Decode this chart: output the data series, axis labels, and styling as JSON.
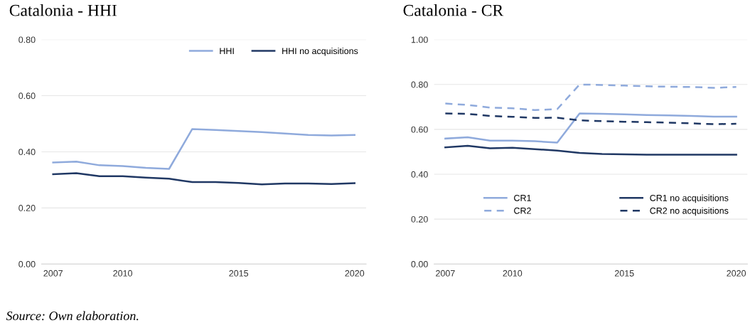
{
  "chart_data": [
    {
      "type": "line",
      "title": "Catalonia - HHI",
      "x": [
        2007,
        2008,
        2009,
        2010,
        2011,
        2012,
        2013,
        2014,
        2015,
        2016,
        2017,
        2018,
        2019,
        2020
      ],
      "xlim": [
        2006.5,
        2020.5
      ],
      "xticks": [
        2007,
        2010,
        2015,
        2020
      ],
      "ylim": [
        0,
        0.8
      ],
      "yticks": [
        {
          "value": 0,
          "label": "0.00"
        },
        {
          "value": 0.2,
          "label": "0.20"
        },
        {
          "value": 0.4,
          "label": "0.40"
        },
        {
          "value": 0.6,
          "label": "0.60"
        },
        {
          "value": 0.8,
          "label": "0.80"
        }
      ],
      "grid": "y",
      "legend": "top right",
      "marker": "none",
      "series": [
        {
          "name": "HHI",
          "color": "#8faadc",
          "line_style": "solid",
          "values": [
            0.362,
            0.365,
            0.352,
            0.349,
            0.343,
            0.339,
            0.481,
            0.478,
            0.474,
            0.47,
            0.465,
            0.46,
            0.458,
            0.46
          ]
        },
        {
          "name": "HHI no acquisitions",
          "color": "#203864",
          "line_style": "solid",
          "values": [
            0.32,
            0.324,
            0.313,
            0.313,
            0.308,
            0.304,
            0.292,
            0.292,
            0.289,
            0.284,
            0.287,
            0.287,
            0.285,
            0.288
          ]
        }
      ],
      "annotations": [
        "Source: Own elaboration."
      ]
    },
    {
      "type": "line",
      "title": "Catalonia - CR",
      "x": [
        2007,
        2008,
        2009,
        2010,
        2011,
        2012,
        2013,
        2014,
        2015,
        2016,
        2017,
        2018,
        2019,
        2020
      ],
      "xlim": [
        2006.5,
        2020.5
      ],
      "xticks": [
        2007,
        2010,
        2015,
        2020
      ],
      "ylim": [
        0,
        1.0
      ],
      "yticks": [
        {
          "value": 0,
          "label": "0.00"
        },
        {
          "value": 0.2,
          "label": "0.20"
        },
        {
          "value": 0.4,
          "label": "0.40"
        },
        {
          "value": 0.6,
          "label": "0.60"
        },
        {
          "value": 0.8,
          "label": "0.80"
        },
        {
          "value": 1.0,
          "label": "1.00"
        }
      ],
      "grid": "y",
      "legend": "bottom",
      "marker": "none",
      "series": [
        {
          "name": "CR1",
          "color": "#8faadc",
          "line_style": "solid",
          "values": [
            0.559,
            0.565,
            0.55,
            0.55,
            0.547,
            0.541,
            0.671,
            0.669,
            0.667,
            0.664,
            0.662,
            0.66,
            0.657,
            0.657
          ]
        },
        {
          "name": "CR2",
          "color": "#8faadc",
          "line_style": "dashed",
          "values": [
            0.715,
            0.709,
            0.697,
            0.694,
            0.686,
            0.69,
            0.8,
            0.798,
            0.795,
            0.792,
            0.79,
            0.789,
            0.785,
            0.789
          ]
        },
        {
          "name": "CR1 no acquisitions",
          "color": "#203864",
          "line_style": "solid",
          "values": [
            0.52,
            0.527,
            0.516,
            0.518,
            0.512,
            0.505,
            0.495,
            0.49,
            0.489,
            0.487,
            0.487,
            0.487,
            0.487,
            0.487
          ]
        },
        {
          "name": "CR2 no acquisitions",
          "color": "#203864",
          "line_style": "dashed",
          "values": [
            0.671,
            0.669,
            0.66,
            0.656,
            0.651,
            0.652,
            0.64,
            0.637,
            0.634,
            0.632,
            0.63,
            0.627,
            0.623,
            0.625
          ]
        }
      ]
    }
  ]
}
